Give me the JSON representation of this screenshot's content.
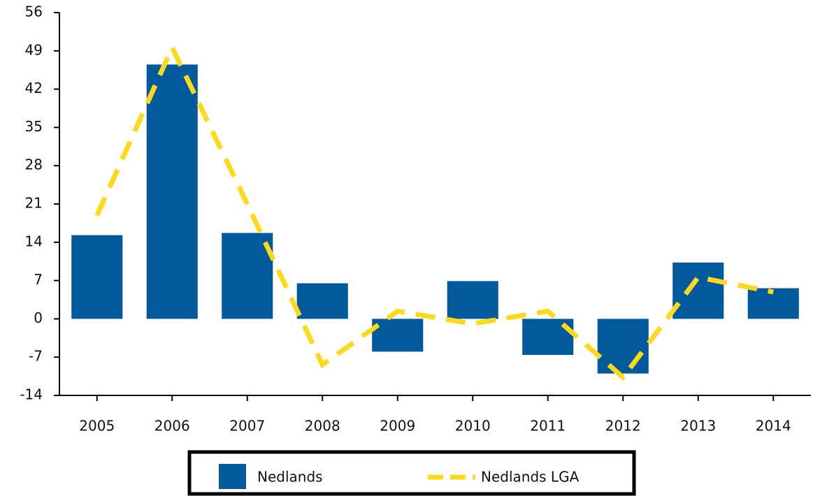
{
  "chart_data": {
    "type": "bar_line",
    "categories": [
      "2005",
      "2006",
      "2007",
      "2008",
      "2009",
      "2010",
      "2011",
      "2012",
      "2013",
      "2014"
    ],
    "series": [
      {
        "name": "Nedlands",
        "type": "bar",
        "color": "#005a9c",
        "values": [
          15.3,
          46.5,
          15.7,
          6.5,
          -6,
          6.9,
          -6.6,
          -10,
          10.3,
          5.6
        ]
      },
      {
        "name": "Nedlands LGA",
        "type": "line",
        "color": "#ffd91a",
        "values": [
          18.9,
          49.6,
          21,
          -8.4,
          1.4,
          -0.9,
          1.4,
          -10.7,
          7.6,
          4.9
        ]
      }
    ],
    "ylim": [
      -14,
      56
    ],
    "yticks": [
      -14,
      -7,
      0,
      7,
      14,
      21,
      28,
      35,
      42,
      49,
      56
    ]
  }
}
